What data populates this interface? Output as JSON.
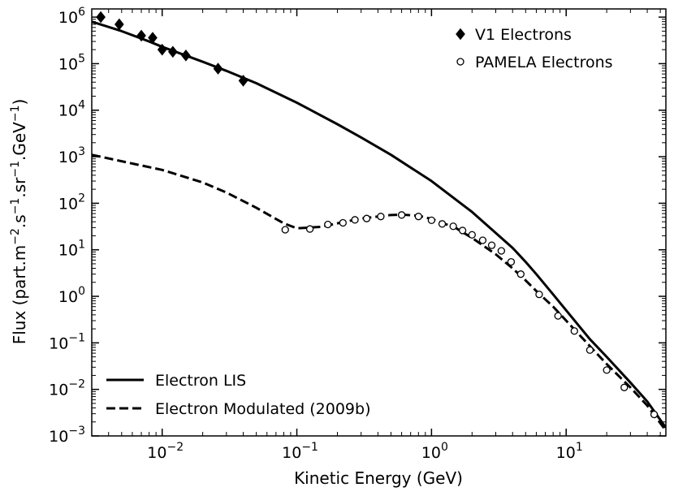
{
  "chart_data": {
    "type": "line",
    "title": "",
    "xlabel": "Kinetic Energy (GeV)",
    "ylabel": {
      "prefix": "Flux (part.m",
      "sup1": "−2",
      "mid1": ".s",
      "sup2": "−1",
      "mid2": ".sr",
      "sup3": "−1",
      "mid3": ".GeV",
      "sup4": "−1",
      "suffix": ")"
    },
    "xscale": "log",
    "yscale": "log",
    "xlim": [
      0.003,
      55
    ],
    "ylim": [
      0.001,
      1500000
    ],
    "xticks": [
      {
        "value": 0.01,
        "base": "10",
        "exp": "−2"
      },
      {
        "value": 0.1,
        "base": "10",
        "exp": "−1"
      },
      {
        "value": 1,
        "base": "10",
        "exp": "0"
      },
      {
        "value": 10,
        "base": "10",
        "exp": "1"
      }
    ],
    "yticks": [
      {
        "value": 1000000,
        "base": "10",
        "exp": "6"
      },
      {
        "value": 100000,
        "base": "10",
        "exp": "5"
      },
      {
        "value": 10000,
        "base": "10",
        "exp": "4"
      },
      {
        "value": 1000,
        "base": "10",
        "exp": "3"
      },
      {
        "value": 100,
        "base": "10",
        "exp": "2"
      },
      {
        "value": 10,
        "base": "10",
        "exp": "1"
      },
      {
        "value": 1,
        "base": "10",
        "exp": "0"
      },
      {
        "value": 0.1,
        "base": "10",
        "exp": "−1"
      },
      {
        "value": 0.01,
        "base": "10",
        "exp": "−2"
      },
      {
        "value": 0.001,
        "base": "10",
        "exp": "−3"
      }
    ],
    "series": [
      {
        "name": "Electron LIS",
        "style": "solid",
        "color": "#000000",
        "x": [
          0.003,
          0.005,
          0.008,
          0.01,
          0.02,
          0.03,
          0.05,
          0.1,
          0.2,
          0.3,
          0.5,
          1,
          2,
          3,
          4,
          5,
          6,
          8,
          10,
          15,
          20,
          30,
          40,
          55
        ],
        "y": [
          800000,
          500000,
          300000,
          230000,
          110000,
          70000,
          38000,
          14500,
          5000,
          2600,
          1100,
          300,
          65,
          23,
          11,
          5.5,
          3,
          1.1,
          0.5,
          0.12,
          0.05,
          0.014,
          0.0055,
          0.0015
        ]
      },
      {
        "name": "Electron Modulated (2009b)",
        "style": "dashed",
        "color": "#000000",
        "x": [
          0.003,
          0.01,
          0.02,
          0.03,
          0.05,
          0.08,
          0.1,
          0.15,
          0.2,
          0.3,
          0.5,
          0.6,
          0.8,
          1,
          1.5,
          2,
          3,
          4,
          5,
          6,
          8,
          10,
          15,
          20,
          30,
          40,
          55
        ],
        "y": [
          1100,
          520,
          280,
          170,
          80,
          37,
          29,
          31,
          37,
          47,
          56,
          57,
          54,
          46,
          30,
          18,
          8,
          4,
          2.2,
          1.3,
          0.6,
          0.3,
          0.085,
          0.035,
          0.011,
          0.0045,
          0.0013
        ]
      }
    ],
    "scatter": [
      {
        "name": "V1 Electrons",
        "marker": "diamond",
        "fill": "#000000",
        "x": [
          0.0035,
          0.0048,
          0.007,
          0.0085,
          0.01,
          0.012,
          0.015,
          0.026,
          0.04
        ],
        "y": [
          1000000,
          700000,
          400000,
          360000,
          200000,
          180000,
          150000,
          78000,
          43000
        ]
      },
      {
        "name": "PAMELA Electrons",
        "marker": "circle-open",
        "fill": "#ffffff",
        "x": [
          0.082,
          0.125,
          0.17,
          0.22,
          0.27,
          0.33,
          0.42,
          0.6,
          0.8,
          1.0,
          1.2,
          1.45,
          1.7,
          2.0,
          2.4,
          2.8,
          3.3,
          3.9,
          4.6,
          6.3,
          8.7,
          11.5,
          15,
          20,
          27,
          45
        ],
        "y": [
          27,
          28,
          35,
          38,
          44,
          47,
          52,
          56,
          52,
          43,
          36,
          32,
          26,
          21,
          16,
          12.5,
          9.5,
          5.5,
          3,
          1.1,
          0.38,
          0.18,
          0.07,
          0.026,
          0.011,
          0.0029
        ]
      }
    ],
    "legends": [
      {
        "location": "top-right",
        "entries": [
          {
            "label": "V1 Electrons",
            "marker": "diamond"
          },
          {
            "label": "PAMELA Electrons",
            "marker": "circle-open"
          }
        ]
      },
      {
        "location": "bottom-left",
        "entries": [
          {
            "label": "Electron LIS",
            "line": "solid"
          },
          {
            "label": "Electron Modulated (2009b)",
            "line": "dashed"
          }
        ]
      }
    ]
  }
}
